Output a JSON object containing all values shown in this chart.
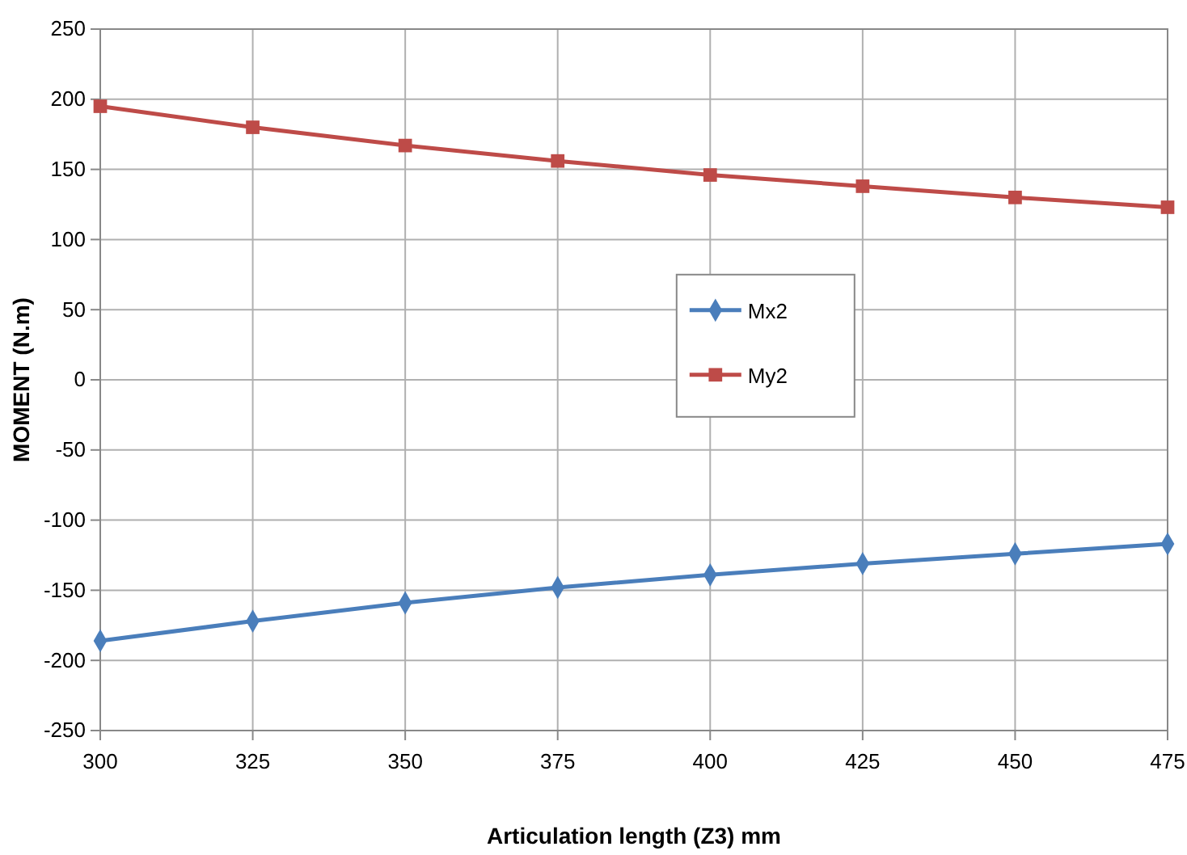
{
  "chart_data": {
    "type": "line",
    "xlabel": "Articulation length (Z3) mm",
    "ylabel": "MOMENT (N.m)",
    "x": [
      300,
      325,
      350,
      375,
      400,
      425,
      450,
      475
    ],
    "series": [
      {
        "name": "Mx2",
        "color": "#4a7ebb",
        "marker": "diamond",
        "values": [
          -186,
          -172,
          -159,
          -148,
          -139,
          -131,
          -124,
          -117
        ]
      },
      {
        "name": "My2",
        "color": "#be4b48",
        "marker": "square",
        "values": [
          195,
          180,
          167,
          156,
          146,
          138,
          130,
          123
        ]
      }
    ],
    "xlim": [
      300,
      475
    ],
    "xticks": [
      300,
      325,
      350,
      375,
      400,
      425,
      450,
      475
    ],
    "ylim": [
      -250,
      250
    ],
    "yticks": [
      -250,
      -200,
      -150,
      -100,
      -50,
      0,
      50,
      100,
      150,
      200,
      250
    ],
    "grid": true,
    "legend": "right"
  }
}
